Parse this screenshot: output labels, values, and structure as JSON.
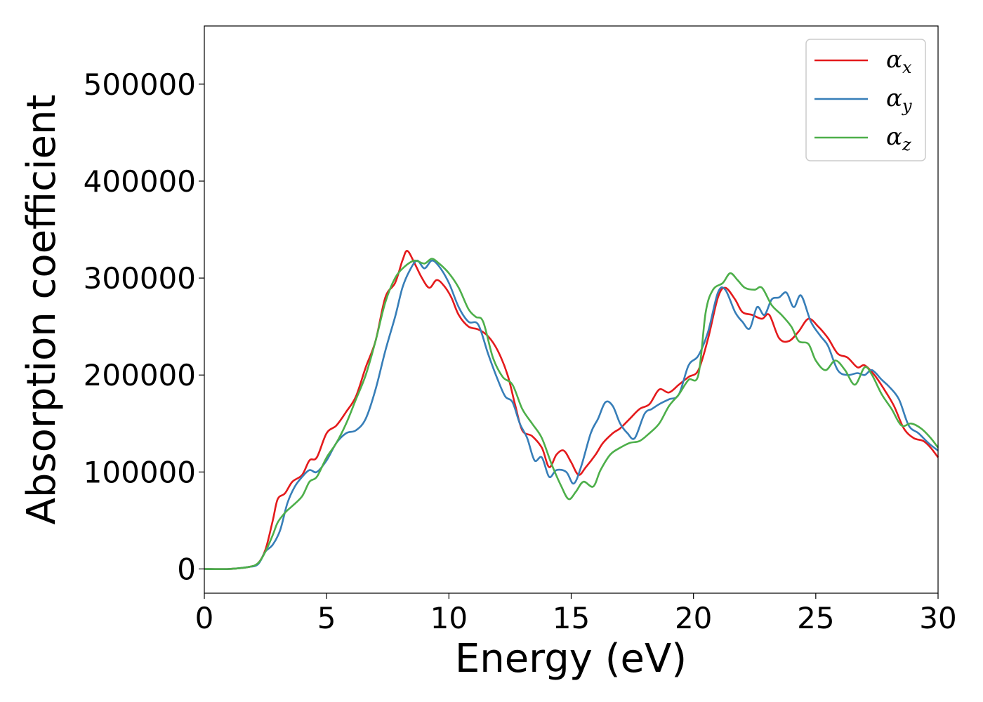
{
  "chart_data": {
    "type": "line",
    "title": "",
    "xlabel": "Energy (eV)",
    "ylabel": "Absorption coefficient",
    "xlim": [
      0,
      30
    ],
    "ylim": [
      -25000,
      560000
    ],
    "xticks": [
      0,
      5,
      10,
      15,
      20,
      25,
      30
    ],
    "xtick_labels": [
      "0",
      "5",
      "10",
      "15",
      "20",
      "25",
      "30"
    ],
    "yticks": [
      0,
      100000,
      200000,
      300000,
      400000,
      500000
    ],
    "ytick_labels": [
      "0",
      "100000",
      "200000",
      "300000",
      "400000",
      "500000"
    ],
    "grid": false,
    "legend_position": "top-right",
    "series": [
      {
        "name": "α",
        "subscript": "x",
        "color": "#e41a1c",
        "points": [
          [
            0,
            0
          ],
          [
            1,
            0
          ],
          [
            1.8,
            2000
          ],
          [
            2.2,
            6000
          ],
          [
            2.5,
            20000
          ],
          [
            2.8,
            50000
          ],
          [
            3.0,
            72000
          ],
          [
            3.3,
            78000
          ],
          [
            3.6,
            90000
          ],
          [
            4.0,
            97000
          ],
          [
            4.3,
            112000
          ],
          [
            4.6,
            115000
          ],
          [
            5.0,
            140000
          ],
          [
            5.4,
            148000
          ],
          [
            5.8,
            162000
          ],
          [
            6.2,
            178000
          ],
          [
            6.6,
            208000
          ],
          [
            7.0,
            235000
          ],
          [
            7.4,
            280000
          ],
          [
            7.8,
            295000
          ],
          [
            8.1,
            318000
          ],
          [
            8.3,
            328000
          ],
          [
            8.6,
            315000
          ],
          [
            8.9,
            300000
          ],
          [
            9.2,
            290000
          ],
          [
            9.5,
            298000
          ],
          [
            9.8,
            292000
          ],
          [
            10.1,
            280000
          ],
          [
            10.4,
            262000
          ],
          [
            10.8,
            250000
          ],
          [
            11.2,
            247000
          ],
          [
            11.6,
            240000
          ],
          [
            12.0,
            225000
          ],
          [
            12.4,
            200000
          ],
          [
            12.7,
            170000
          ],
          [
            13.0,
            143000
          ],
          [
            13.4,
            137000
          ],
          [
            13.8,
            125000
          ],
          [
            14.1,
            105000
          ],
          [
            14.4,
            118000
          ],
          [
            14.7,
            122000
          ],
          [
            15.0,
            110000
          ],
          [
            15.3,
            97000
          ],
          [
            15.6,
            105000
          ],
          [
            16.0,
            118000
          ],
          [
            16.3,
            130000
          ],
          [
            16.7,
            140000
          ],
          [
            17.0,
            145000
          ],
          [
            17.4,
            155000
          ],
          [
            17.8,
            165000
          ],
          [
            18.2,
            170000
          ],
          [
            18.6,
            185000
          ],
          [
            19.0,
            182000
          ],
          [
            19.4,
            190000
          ],
          [
            19.8,
            198000
          ],
          [
            20.2,
            205000
          ],
          [
            20.6,
            238000
          ],
          [
            21.0,
            280000
          ],
          [
            21.3,
            290000
          ],
          [
            21.7,
            278000
          ],
          [
            22.0,
            265000
          ],
          [
            22.4,
            262000
          ],
          [
            22.8,
            258000
          ],
          [
            23.1,
            262000
          ],
          [
            23.5,
            238000
          ],
          [
            23.9,
            235000
          ],
          [
            24.3,
            245000
          ],
          [
            24.7,
            258000
          ],
          [
            25.1,
            250000
          ],
          [
            25.5,
            238000
          ],
          [
            25.9,
            222000
          ],
          [
            26.3,
            218000
          ],
          [
            26.7,
            208000
          ],
          [
            27.0,
            210000
          ],
          [
            27.4,
            200000
          ],
          [
            27.8,
            185000
          ],
          [
            28.2,
            168000
          ],
          [
            28.6,
            145000
          ],
          [
            29.0,
            135000
          ],
          [
            29.4,
            132000
          ],
          [
            29.7,
            125000
          ],
          [
            30.0,
            115000
          ]
        ]
      },
      {
        "name": "α",
        "subscript": "y",
        "color": "#377eb8",
        "points": [
          [
            0,
            0
          ],
          [
            1,
            0
          ],
          [
            1.8,
            2000
          ],
          [
            2.2,
            5000
          ],
          [
            2.5,
            18000
          ],
          [
            2.8,
            25000
          ],
          [
            3.1,
            40000
          ],
          [
            3.4,
            68000
          ],
          [
            3.7,
            85000
          ],
          [
            4.0,
            95000
          ],
          [
            4.3,
            102000
          ],
          [
            4.6,
            100000
          ],
          [
            5.0,
            112000
          ],
          [
            5.4,
            130000
          ],
          [
            5.8,
            140000
          ],
          [
            6.2,
            143000
          ],
          [
            6.6,
            155000
          ],
          [
            7.0,
            185000
          ],
          [
            7.4,
            225000
          ],
          [
            7.8,
            260000
          ],
          [
            8.1,
            290000
          ],
          [
            8.4,
            308000
          ],
          [
            8.7,
            318000
          ],
          [
            9.0,
            310000
          ],
          [
            9.3,
            318000
          ],
          [
            9.6,
            312000
          ],
          [
            10.0,
            295000
          ],
          [
            10.4,
            270000
          ],
          [
            10.8,
            255000
          ],
          [
            11.2,
            252000
          ],
          [
            11.6,
            222000
          ],
          [
            12.0,
            195000
          ],
          [
            12.3,
            178000
          ],
          [
            12.6,
            172000
          ],
          [
            12.9,
            150000
          ],
          [
            13.2,
            135000
          ],
          [
            13.5,
            112000
          ],
          [
            13.8,
            115000
          ],
          [
            14.1,
            95000
          ],
          [
            14.4,
            102000
          ],
          [
            14.8,
            100000
          ],
          [
            15.1,
            88000
          ],
          [
            15.4,
            105000
          ],
          [
            15.8,
            140000
          ],
          [
            16.1,
            155000
          ],
          [
            16.4,
            172000
          ],
          [
            16.7,
            168000
          ],
          [
            17.0,
            150000
          ],
          [
            17.3,
            140000
          ],
          [
            17.6,
            135000
          ],
          [
            18.0,
            160000
          ],
          [
            18.3,
            165000
          ],
          [
            18.6,
            170000
          ],
          [
            19.0,
            175000
          ],
          [
            19.4,
            180000
          ],
          [
            19.8,
            210000
          ],
          [
            20.2,
            220000
          ],
          [
            20.6,
            245000
          ],
          [
            21.0,
            285000
          ],
          [
            21.3,
            288000
          ],
          [
            21.7,
            265000
          ],
          [
            22.0,
            255000
          ],
          [
            22.3,
            248000
          ],
          [
            22.6,
            270000
          ],
          [
            22.9,
            262000
          ],
          [
            23.2,
            278000
          ],
          [
            23.5,
            280000
          ],
          [
            23.8,
            285000
          ],
          [
            24.1,
            270000
          ],
          [
            24.4,
            282000
          ],
          [
            24.8,
            255000
          ],
          [
            25.2,
            240000
          ],
          [
            25.5,
            230000
          ],
          [
            25.9,
            205000
          ],
          [
            26.3,
            200000
          ],
          [
            26.7,
            202000
          ],
          [
            27.0,
            200000
          ],
          [
            27.3,
            205000
          ],
          [
            27.7,
            195000
          ],
          [
            28.0,
            188000
          ],
          [
            28.4,
            175000
          ],
          [
            28.8,
            148000
          ],
          [
            29.2,
            140000
          ],
          [
            29.6,
            130000
          ],
          [
            30.0,
            122000
          ]
        ]
      },
      {
        "name": "α",
        "subscript": "z",
        "color": "#4daf4a",
        "points": [
          [
            0,
            0
          ],
          [
            1,
            0
          ],
          [
            1.8,
            2000
          ],
          [
            2.2,
            6000
          ],
          [
            2.5,
            18000
          ],
          [
            2.8,
            35000
          ],
          [
            3.0,
            48000
          ],
          [
            3.3,
            58000
          ],
          [
            3.6,
            65000
          ],
          [
            4.0,
            75000
          ],
          [
            4.3,
            90000
          ],
          [
            4.6,
            95000
          ],
          [
            5.0,
            115000
          ],
          [
            5.4,
            130000
          ],
          [
            5.8,
            150000
          ],
          [
            6.2,
            175000
          ],
          [
            6.6,
            200000
          ],
          [
            7.0,
            235000
          ],
          [
            7.4,
            275000
          ],
          [
            7.8,
            300000
          ],
          [
            8.2,
            312000
          ],
          [
            8.6,
            318000
          ],
          [
            9.0,
            315000
          ],
          [
            9.3,
            320000
          ],
          [
            9.6,
            315000
          ],
          [
            10.0,
            305000
          ],
          [
            10.4,
            290000
          ],
          [
            10.8,
            268000
          ],
          [
            11.1,
            260000
          ],
          [
            11.4,
            255000
          ],
          [
            11.8,
            218000
          ],
          [
            12.2,
            198000
          ],
          [
            12.6,
            190000
          ],
          [
            13.0,
            165000
          ],
          [
            13.4,
            150000
          ],
          [
            13.8,
            135000
          ],
          [
            14.2,
            108000
          ],
          [
            14.6,
            85000
          ],
          [
            14.9,
            72000
          ],
          [
            15.2,
            80000
          ],
          [
            15.5,
            90000
          ],
          [
            15.9,
            85000
          ],
          [
            16.2,
            102000
          ],
          [
            16.6,
            118000
          ],
          [
            17.0,
            125000
          ],
          [
            17.4,
            130000
          ],
          [
            17.8,
            132000
          ],
          [
            18.2,
            140000
          ],
          [
            18.6,
            150000
          ],
          [
            19.0,
            168000
          ],
          [
            19.4,
            180000
          ],
          [
            19.8,
            195000
          ],
          [
            20.2,
            200000
          ],
          [
            20.5,
            265000
          ],
          [
            20.8,
            288000
          ],
          [
            21.2,
            295000
          ],
          [
            21.5,
            305000
          ],
          [
            21.8,
            298000
          ],
          [
            22.1,
            290000
          ],
          [
            22.5,
            288000
          ],
          [
            22.8,
            290000
          ],
          [
            23.2,
            272000
          ],
          [
            23.6,
            262000
          ],
          [
            24.0,
            250000
          ],
          [
            24.3,
            235000
          ],
          [
            24.7,
            232000
          ],
          [
            25.0,
            215000
          ],
          [
            25.4,
            205000
          ],
          [
            25.8,
            215000
          ],
          [
            26.2,
            205000
          ],
          [
            26.6,
            190000
          ],
          [
            27.0,
            208000
          ],
          [
            27.3,
            200000
          ],
          [
            27.7,
            180000
          ],
          [
            28.1,
            165000
          ],
          [
            28.5,
            148000
          ],
          [
            28.9,
            150000
          ],
          [
            29.3,
            145000
          ],
          [
            29.7,
            135000
          ],
          [
            30.0,
            125000
          ]
        ]
      }
    ]
  }
}
